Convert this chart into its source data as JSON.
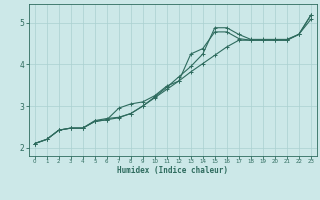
{
  "xlabel": "Humidex (Indice chaleur)",
  "background_color": "#cce8e8",
  "grid_color": "#aad0d0",
  "line_color": "#2e6b5e",
  "xlim": [
    -0.5,
    23.5
  ],
  "ylim": [
    1.8,
    5.45
  ],
  "xticks": [
    0,
    1,
    2,
    3,
    4,
    5,
    6,
    7,
    8,
    9,
    10,
    11,
    12,
    13,
    14,
    15,
    16,
    17,
    18,
    19,
    20,
    21,
    22,
    23
  ],
  "yticks": [
    2,
    3,
    4,
    5
  ],
  "line1_x": [
    0,
    1,
    2,
    3,
    4,
    5,
    6,
    7,
    8,
    9,
    10,
    11,
    12,
    13,
    14,
    15,
    16,
    17,
    18,
    19,
    20,
    21,
    22,
    23
  ],
  "line1_y": [
    2.1,
    2.2,
    2.42,
    2.47,
    2.47,
    2.65,
    2.7,
    2.73,
    2.82,
    3.0,
    3.2,
    3.4,
    3.6,
    3.82,
    4.02,
    4.22,
    4.42,
    4.58,
    4.58,
    4.58,
    4.58,
    4.58,
    4.72,
    5.08
  ],
  "line2_x": [
    0,
    1,
    2,
    3,
    4,
    5,
    6,
    7,
    8,
    9,
    10,
    11,
    12,
    13,
    14,
    15,
    16,
    17,
    18,
    19,
    20,
    21,
    22,
    23
  ],
  "line2_y": [
    2.1,
    2.2,
    2.42,
    2.47,
    2.47,
    2.63,
    2.67,
    2.72,
    2.82,
    3.0,
    3.22,
    3.45,
    3.7,
    3.95,
    4.25,
    4.88,
    4.88,
    4.72,
    4.6,
    4.6,
    4.6,
    4.6,
    4.72,
    5.18
  ],
  "line3_x": [
    0,
    1,
    2,
    3,
    4,
    5,
    6,
    7,
    8,
    9,
    10,
    11,
    12,
    13,
    14,
    15,
    16,
    17,
    18,
    19,
    20,
    21,
    22,
    23
  ],
  "line3_y": [
    2.1,
    2.2,
    2.42,
    2.47,
    2.47,
    2.63,
    2.67,
    2.95,
    3.05,
    3.1,
    3.25,
    3.48,
    3.6,
    4.25,
    4.38,
    4.78,
    4.78,
    4.62,
    4.58,
    4.58,
    4.58,
    4.58,
    4.72,
    5.18
  ]
}
